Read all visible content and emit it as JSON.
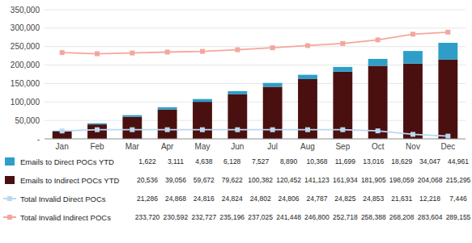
{
  "chart_data": {
    "type": "bar",
    "stacked": true,
    "grid": true,
    "legend": "bottom",
    "categories": [
      "Jan",
      "Feb",
      "Mar",
      "Apr",
      "May",
      "Jun",
      "Jul",
      "Aug",
      "Sep",
      "Oct",
      "Nov",
      "Dec"
    ],
    "ylim": [
      0,
      350000
    ],
    "yticks": [
      {
        "value": 0,
        "label": "-"
      },
      {
        "value": 50000,
        "label": "50,000"
      },
      {
        "value": 100000,
        "label": "100,000"
      },
      {
        "value": 150000,
        "label": "150,000"
      },
      {
        "value": 200000,
        "label": "200,000"
      },
      {
        "value": 250000,
        "label": "250,000"
      },
      {
        "value": 300000,
        "label": "300,000"
      },
      {
        "value": 350000,
        "label": "350,000"
      }
    ],
    "series": [
      {
        "name": "Emails to Indirect POCs YTD",
        "type": "bar",
        "color": "#4A1010",
        "values": [
          20536,
          39056,
          59672,
          79622,
          100382,
          120452,
          141123,
          161934,
          181905,
          198059,
          204068,
          215295
        ],
        "value_labels": [
          "20,536",
          "39,056",
          "59,672",
          "79,622",
          "100,382",
          "120,452",
          "141,123",
          "161,934",
          "181,905",
          "198,059",
          "204,068",
          "215,295"
        ]
      },
      {
        "name": "Emails to Direct POCs YTD",
        "type": "bar",
        "color": "#2E9EC9",
        "values": [
          1622,
          3111,
          4638,
          6128,
          7527,
          8890,
          10368,
          11699,
          13016,
          18629,
          34047,
          44961
        ],
        "value_labels": [
          "1,622",
          "3,111",
          "4,638",
          "6,128",
          "7,527",
          "8,890",
          "10,368",
          "11,699",
          "13,016",
          "18,629",
          "34,047",
          "44,961"
        ]
      },
      {
        "name": "Total Invalid Direct POCs",
        "type": "line",
        "marker": "square",
        "color": "#BDD7EE",
        "values": [
          21286,
          24868,
          24816,
          24824,
          24802,
          24806,
          24787,
          24825,
          24853,
          21631,
          12218,
          7446
        ],
        "value_labels": [
          "21,286",
          "24,868",
          "24,816",
          "24,824",
          "24,802",
          "24,806",
          "24,787",
          "24,825",
          "24,853",
          "21,631",
          "12,218",
          "7,446"
        ]
      },
      {
        "name": "Total Invalid Indirect POCs",
        "type": "line",
        "marker": "square",
        "color": "#F4A69E",
        "values": [
          233720,
          230592,
          232727,
          235196,
          237025,
          241448,
          246800,
          252718,
          258388,
          268208,
          283604,
          289155
        ],
        "value_labels": [
          "233,720",
          "230,592",
          "232,727",
          "235,196",
          "237,025",
          "241,448",
          "246,800",
          "252,718",
          "258,388",
          "268,208",
          "283,604",
          "289,155"
        ]
      }
    ]
  }
}
